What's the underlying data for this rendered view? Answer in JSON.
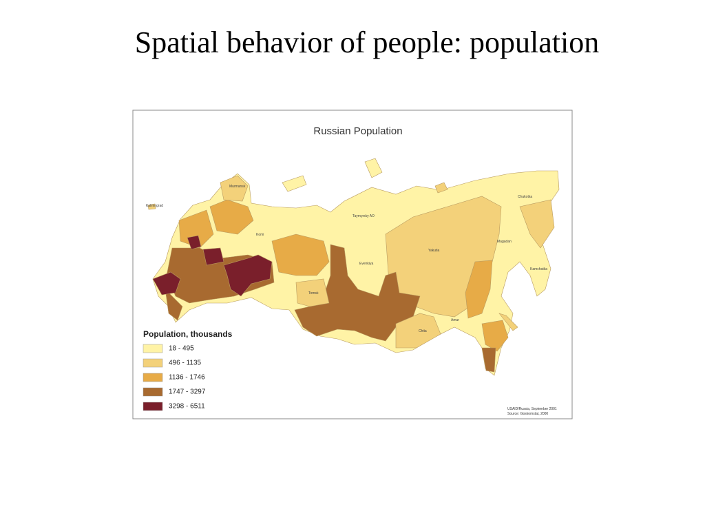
{
  "slide": {
    "title": "Spatial behavior of people: population"
  },
  "map": {
    "title": "Russian Population",
    "legend": {
      "title": "Population, thousands",
      "items": [
        {
          "label": "18 - 495",
          "color": "#fff3a6"
        },
        {
          "label": "496 - 1135",
          "color": "#f3d17a"
        },
        {
          "label": "1136 - 1746",
          "color": "#e7ab47"
        },
        {
          "label": "1747 - 3297",
          "color": "#a86a30"
        },
        {
          "label": "3298 - 6511",
          "color": "#7a1f2b"
        }
      ]
    },
    "region_labels": [
      "Murmansk",
      "Kaliningrad",
      "Komi",
      "Taymyrsky AO",
      "Evenkiya",
      "Yakutia",
      "Magadan",
      "Chukotka",
      "Kamchatka",
      "Tomsk",
      "Amur",
      "Chita"
    ],
    "source": [
      "USAID/Russia, September 2001",
      "Source: Goskomstat, 2000"
    ]
  }
}
